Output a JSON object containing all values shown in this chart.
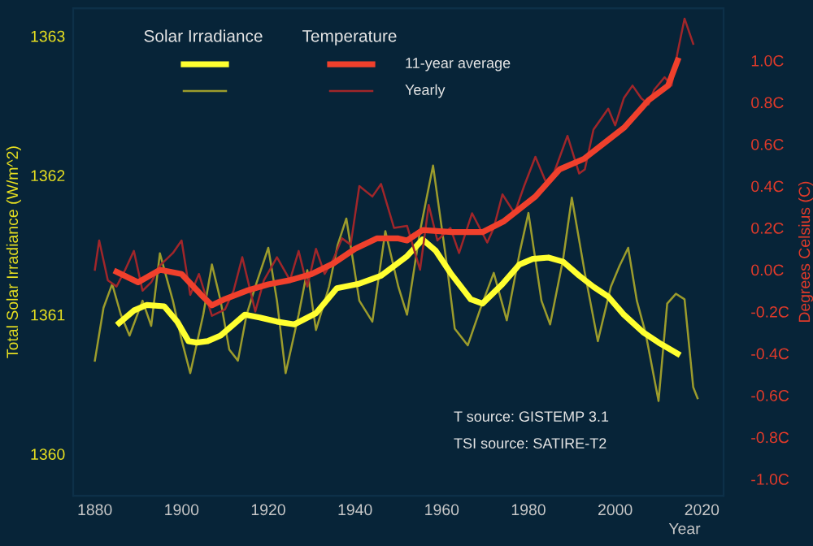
{
  "chart_data": {
    "type": "line",
    "xlabel": "Year",
    "ylabel": "Total Solar Irradiance (W/m^2)",
    "y2label": "Degrees Celsius (C)",
    "xlim": [
      1875,
      2025
    ],
    "xticks": [
      1880,
      1900,
      1920,
      1940,
      1960,
      1980,
      2000,
      2020
    ],
    "ylim": [
      1359.7,
      1363.2
    ],
    "yticks": [
      1360,
      1361,
      1362,
      1363
    ],
    "y2lim": [
      -1.08,
      1.25
    ],
    "y2ticks": [
      {
        "value": -1.0,
        "label": "-1.0C"
      },
      {
        "value": -0.8,
        "label": "-0.8C"
      },
      {
        "value": -0.6,
        "label": "-0.6C"
      },
      {
        "value": -0.4,
        "label": "-0.4C"
      },
      {
        "value": -0.2,
        "label": "-0.2C"
      },
      {
        "value": 0.0,
        "label": "0.0C"
      },
      {
        "value": 0.2,
        "label": "0.2C"
      },
      {
        "value": 0.4,
        "label": "0.4C"
      },
      {
        "value": 0.6,
        "label": "0.6C"
      },
      {
        "value": 0.8,
        "label": "0.8C"
      },
      {
        "value": 1.0,
        "label": "1.0C"
      }
    ],
    "grid": false,
    "legend": "top left",
    "marker": "none",
    "annotations": [
      "Solar Irradiance",
      "Temperature",
      "T source: GISTEMP 3.1",
      "TSI source: SATIRE-T2"
    ],
    "series": [
      {
        "color": "#9c9c2c",
        "axis": "y",
        "x": [
          1880,
          1882,
          1884,
          1886,
          1888,
          1891,
          1893,
          1895,
          1898,
          1900,
          1902,
          1905,
          1907,
          1909,
          1911,
          1913,
          1915,
          1917,
          1920,
          1922,
          1924,
          1927,
          1929,
          1931,
          1934,
          1936,
          1938,
          1941,
          1944,
          1947,
          1950,
          1952,
          1955,
          1958,
          1961,
          1963,
          1966,
          1969,
          1972,
          1975,
          1978,
          1980,
          1983,
          1985,
          1988,
          1990,
          1993,
          1996,
          1999,
          2001,
          2003,
          2005,
          2007,
          2010,
          2012,
          2014,
          2016,
          2018,
          2019
        ],
        "values": [
          1360.67,
          1361.05,
          1361.22,
          1361.0,
          1360.85,
          1361.1,
          1360.92,
          1361.44,
          1361.1,
          1360.82,
          1360.58,
          1361.0,
          1361.36,
          1361.1,
          1360.75,
          1360.67,
          1361.0,
          1361.2,
          1361.48,
          1361.1,
          1360.58,
          1361.0,
          1361.32,
          1360.89,
          1361.2,
          1361.5,
          1361.69,
          1361.1,
          1360.95,
          1361.6,
          1361.2,
          1361.0,
          1361.6,
          1362.07,
          1361.4,
          1360.9,
          1360.78,
          1361.05,
          1361.3,
          1360.96,
          1361.45,
          1361.73,
          1361.1,
          1360.93,
          1361.4,
          1361.84,
          1361.3,
          1360.81,
          1361.2,
          1361.35,
          1361.48,
          1361.1,
          1360.87,
          1360.38,
          1361.08,
          1361.15,
          1361.11,
          1360.48,
          1360.4
        ]
      },
      {
        "color": "#ffff30",
        "axis": "y",
        "x": [
          1885.6,
          1889,
          1892,
          1896,
          1899,
          1901.6,
          1903.5,
          1906,
          1909,
          1912,
          1914.6,
          1918,
          1922,
          1926,
          1931,
          1935.8,
          1940.7,
          1946,
          1952,
          1955.6,
          1958.6,
          1962,
          1966.7,
          1969.4,
          1974,
          1977.9,
          1981,
          1984.6,
          1988,
          1991.7,
          1995,
          1998.4,
          2002,
          2006.6,
          2010,
          2014.4
        ],
        "values": [
          1360.94,
          1361.03,
          1361.07,
          1361.06,
          1360.95,
          1360.81,
          1360.8,
          1360.81,
          1360.85,
          1360.93,
          1361.0,
          1360.98,
          1360.95,
          1360.93,
          1361.01,
          1361.19,
          1361.22,
          1361.28,
          1361.42,
          1361.54,
          1361.46,
          1361.3,
          1361.11,
          1361.08,
          1361.22,
          1361.36,
          1361.4,
          1361.41,
          1361.38,
          1361.28,
          1361.2,
          1361.13,
          1361.0,
          1360.87,
          1360.8,
          1360.72
        ]
      },
      {
        "name": "Yearly",
        "color": "#a0262a",
        "axis": "y2",
        "x": [
          1880,
          1881,
          1883,
          1885,
          1887,
          1889,
          1891,
          1893,
          1895,
          1898,
          1900,
          1902,
          1904,
          1907,
          1910,
          1912,
          1914,
          1917,
          1919,
          1922,
          1925,
          1927,
          1929,
          1931,
          1933,
          1935,
          1937,
          1939,
          1941,
          1944,
          1946,
          1949,
          1952,
          1955,
          1957,
          1959,
          1962,
          1964,
          1967,
          1970.5,
          1972,
          1974,
          1976.8,
          1979,
          1981.6,
          1984,
          1986,
          1989,
          1991.7,
          1993,
          1995,
          1998.4,
          2000,
          2002,
          2004,
          2006,
          2007.7,
          2009,
          2011.4,
          2013,
          2014.4,
          2016,
          2018
        ],
        "values": [
          0.0,
          0.14,
          -0.05,
          -0.08,
          0.0,
          0.09,
          -0.1,
          -0.06,
          0.02,
          0.08,
          0.14,
          -0.12,
          -0.02,
          -0.22,
          -0.19,
          -0.1,
          0.06,
          -0.2,
          -0.05,
          0.06,
          -0.05,
          0.09,
          -0.08,
          0.1,
          -0.02,
          0.05,
          0.15,
          0.12,
          0.4,
          0.35,
          0.41,
          0.2,
          0.21,
          0.0,
          0.31,
          0.14,
          0.2,
          0.08,
          0.27,
          0.13,
          0.2,
          0.36,
          0.27,
          0.4,
          0.54,
          0.42,
          0.47,
          0.64,
          0.46,
          0.48,
          0.67,
          0.77,
          0.69,
          0.82,
          0.88,
          0.82,
          0.79,
          0.86,
          0.92,
          0.88,
          1.04,
          1.2,
          1.08
        ]
      },
      {
        "name": "11-year average",
        "color": "#f0402c",
        "axis": "y2",
        "x": [
          1885,
          1890,
          1895,
          1900,
          1905,
          1907,
          1910,
          1915,
          1920,
          1925,
          1930,
          1935,
          1940,
          1945,
          1950,
          1952,
          1955.6,
          1962.3,
          1969.4,
          1974.2,
          1981.6,
          1987.2,
          1992.8,
          1996.5,
          2002.1,
          2007.7,
          2012.2,
          2014.4
        ],
        "values": [
          -0.01,
          -0.06,
          0.0,
          -0.02,
          -0.13,
          -0.17,
          -0.14,
          -0.1,
          -0.07,
          -0.05,
          -0.02,
          0.03,
          0.1,
          0.15,
          0.15,
          0.14,
          0.19,
          0.18,
          0.18,
          0.23,
          0.35,
          0.48,
          0.53,
          0.59,
          0.68,
          0.81,
          0.88,
          1.0
        ]
      }
    ]
  }
}
